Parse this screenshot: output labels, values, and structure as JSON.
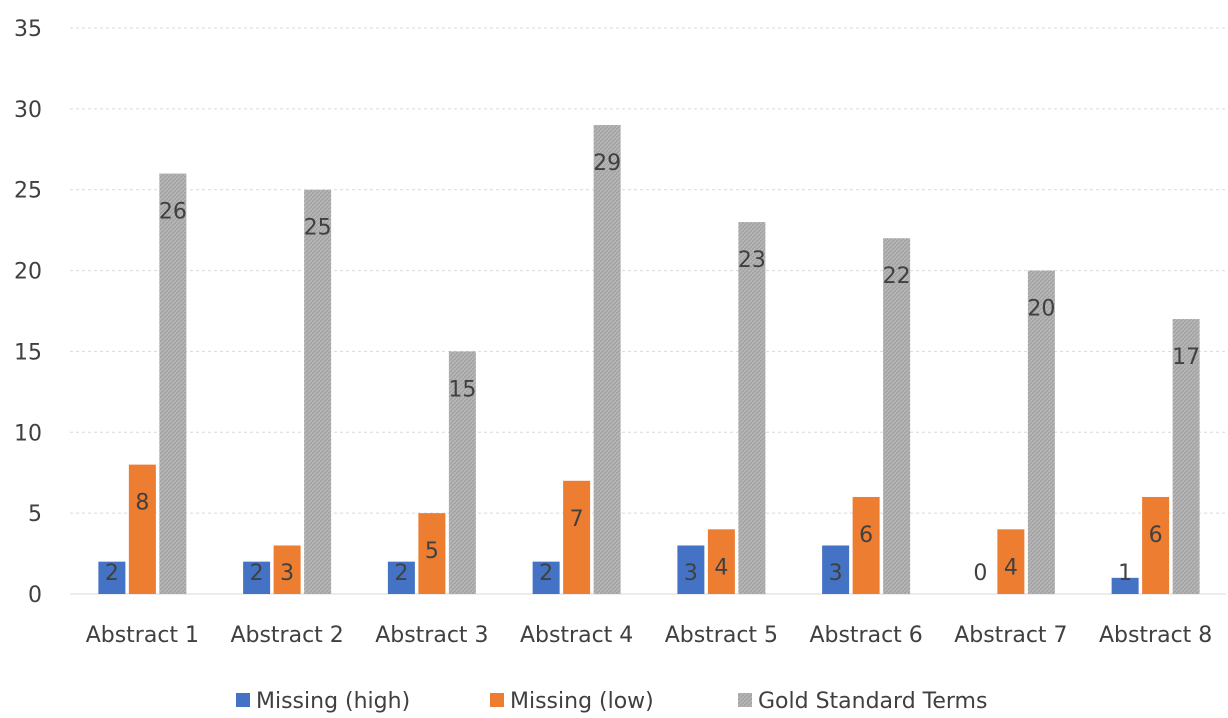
{
  "chart_data": {
    "type": "bar",
    "categories": [
      "Abstract 1",
      "Abstract 2",
      "Abstract 3",
      "Abstract 4",
      "Abstract 5",
      "Abstract 6",
      "Abstract 7",
      "Abstract 8"
    ],
    "series": [
      {
        "name": "Missing (high)",
        "values": [
          2,
          2,
          2,
          2,
          3,
          3,
          0,
          1
        ],
        "color": "#4472c4"
      },
      {
        "name": "Missing (low)",
        "values": [
          8,
          3,
          5,
          7,
          4,
          6,
          4,
          6
        ],
        "color": "#ed7d31"
      },
      {
        "name": "Gold Standard Terms",
        "values": [
          26,
          25,
          15,
          29,
          23,
          22,
          20,
          17
        ],
        "color": "#a5a5a5"
      }
    ],
    "title": "",
    "xlabel": "",
    "ylabel": "",
    "ylim": [
      0,
      35
    ],
    "yticks": [
      0,
      5,
      10,
      15,
      20,
      25,
      30,
      35
    ],
    "grid": true,
    "legend_position": "bottom"
  }
}
